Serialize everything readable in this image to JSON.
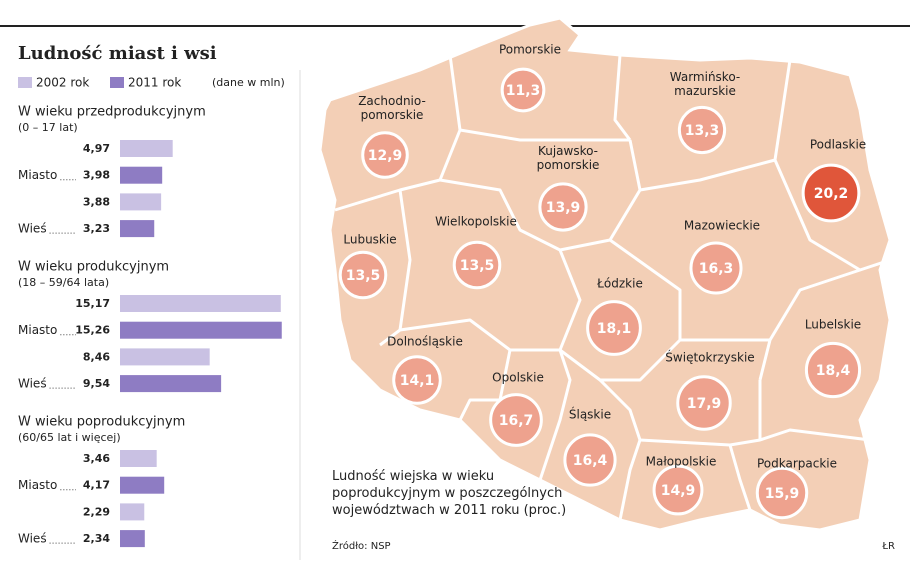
{
  "chart_data": [
    {
      "type": "grouped-hbar",
      "title": "Ludność miast i wsi",
      "unit_note": "(dane w mln)",
      "legend": [
        {
          "name": "2002 rok",
          "color": "#c9c1e3"
        },
        {
          "name": "2011 rok",
          "color": "#8e7cc3"
        }
      ],
      "groups": [
        {
          "title": "W wieku przedprodukcyjnym",
          "subtitle": "(0 – 17 lat)",
          "categories": [
            "Miasto",
            "Wieś"
          ],
          "series": [
            {
              "values": [
                4.97,
                3.88
              ],
              "value_labels": [
                "4,97",
                "3,88"
              ]
            },
            {
              "values": [
                3.98,
                3.23
              ],
              "value_labels": [
                "3,98",
                "3,23"
              ]
            }
          ]
        },
        {
          "title": "W wieku produkcyjnym",
          "subtitle": "(18 – 59/64 lata)",
          "categories": [
            "Miasto",
            "Wieś"
          ],
          "series": [
            {
              "values": [
                15.17,
                8.46
              ],
              "value_labels": [
                "15,17",
                "8,46"
              ]
            },
            {
              "values": [
                15.26,
                9.54
              ],
              "value_labels": [
                "15,26",
                "9,54"
              ]
            }
          ]
        },
        {
          "title": "W wieku poprodukcyjnym",
          "subtitle": "(60/65 lat i więcej)",
          "categories": [
            "Miasto",
            "Wieś"
          ],
          "series": [
            {
              "values": [
                3.46,
                2.29
              ],
              "value_labels": [
                "3,46",
                "2,29"
              ]
            },
            {
              "values": [
                4.17,
                2.34
              ],
              "value_labels": [
                "4,17",
                "2,34"
              ]
            }
          ]
        }
      ]
    },
    {
      "type": "map",
      "title": "Ludność wiejska w wieku poprodukcyjnym w poszczególnych województwach w 2011 roku (proc.)",
      "regions": [
        {
          "name": "Pomorskie",
          "value": 11.3,
          "value_label": "11,3",
          "color": "#eea28e"
        },
        {
          "name": "Zachodnio-pomorskie",
          "value": 12.9,
          "value_label": "12,9",
          "color": "#eea28e"
        },
        {
          "name": "Warmińsko-mazurskie",
          "value": 13.3,
          "value_label": "13,3",
          "color": "#eea28e"
        },
        {
          "name": "Podlaskie",
          "value": 20.2,
          "value_label": "20,2",
          "color": "#e0563a"
        },
        {
          "name": "Kujawsko-pomorskie",
          "value": 13.9,
          "value_label": "13,9",
          "color": "#eea28e"
        },
        {
          "name": "Wielkopolskie",
          "value": 13.5,
          "value_label": "13,5",
          "color": "#eea28e"
        },
        {
          "name": "Lubuskie",
          "value": 13.5,
          "value_label": "13,5",
          "color": "#eea28e"
        },
        {
          "name": "Mazowieckie",
          "value": 16.3,
          "value_label": "16,3",
          "color": "#eea28e"
        },
        {
          "name": "Łódzkie",
          "value": 18.1,
          "value_label": "18,1",
          "color": "#eea28e"
        },
        {
          "name": "Lubelskie",
          "value": 18.4,
          "value_label": "18,4",
          "color": "#eea28e"
        },
        {
          "name": "Dolnośląskie",
          "value": 14.1,
          "value_label": "14,1",
          "color": "#eea28e"
        },
        {
          "name": "Opolskie",
          "value": 16.7,
          "value_label": "16,7",
          "color": "#eea28e"
        },
        {
          "name": "Świętokrzyskie",
          "value": 17.9,
          "value_label": "17,9",
          "color": "#eea28e"
        },
        {
          "name": "Śląskie",
          "value": 16.4,
          "value_label": "16,4",
          "color": "#eea28e"
        },
        {
          "name": "Małopolskie",
          "value": 14.9,
          "value_label": "14,9",
          "color": "#eea28e"
        },
        {
          "name": "Podkarpackie",
          "value": 15.9,
          "value_label": "15,9",
          "color": "#eea28e"
        }
      ]
    }
  ],
  "source": "Źródło: NSP",
  "credit": "ŁR"
}
